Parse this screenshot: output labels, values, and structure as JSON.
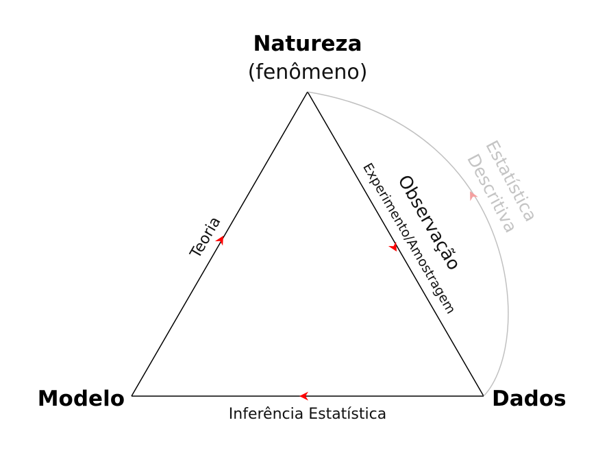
{
  "nodes": {
    "top": {
      "title": "Natureza",
      "subtitle": "(fenômeno)"
    },
    "left": {
      "title": "Modelo"
    },
    "right": {
      "title": "Dados"
    }
  },
  "edges": {
    "theory": {
      "label": "Teoria"
    },
    "observation": {
      "label": "Observação",
      "sublabel": "Experimento/Amostragem"
    },
    "inference": {
      "label": "Inferência Estatística"
    },
    "descriptive": {
      "label_line1": "Estatística",
      "label_line2": "Descritiva"
    }
  },
  "colors": {
    "line": "#000000",
    "arrow": "#ff0000",
    "faded_line": "#c0c0c0",
    "faded_arrow": "#f4a0a0",
    "faded_text": "#c4c4c4"
  }
}
